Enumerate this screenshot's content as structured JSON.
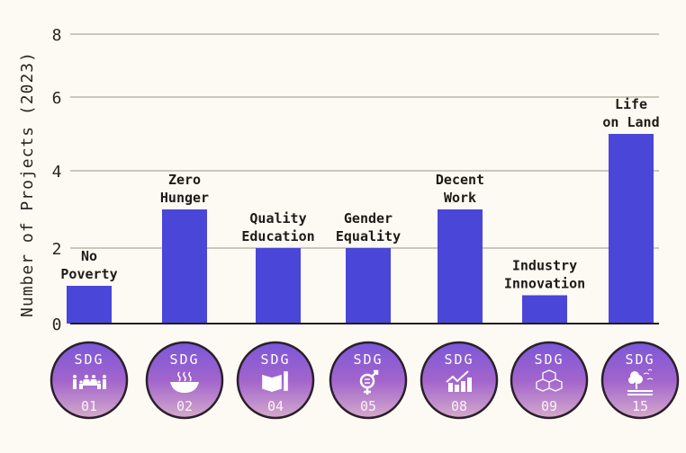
{
  "chart_data": {
    "type": "bar",
    "title": "",
    "xlabel": "",
    "ylabel": "Number of Projects (2023)",
    "ylim": [
      0,
      8
    ],
    "yticks": [
      0,
      2,
      4,
      6,
      8
    ],
    "grid": true,
    "bar_color": "#4a46d8",
    "categories": [
      "No\nPoverty",
      "Zero\nHunger",
      "Quality\nEducation",
      "Gender\nEquality",
      "Decent\nWork",
      "Industry\nInnovation",
      "Life\non Land"
    ],
    "values": [
      1,
      3,
      2,
      2,
      3,
      0.75,
      5
    ],
    "badges": [
      {
        "label": "SDG",
        "number": "01",
        "icon": "family-icon"
      },
      {
        "label": "SDG",
        "number": "02",
        "icon": "bowl-icon"
      },
      {
        "label": "SDG",
        "number": "04",
        "icon": "book-pencil-icon"
      },
      {
        "label": "SDG",
        "number": "05",
        "icon": "gender-equality-icon"
      },
      {
        "label": "SDG",
        "number": "08",
        "icon": "growth-chart-icon"
      },
      {
        "label": "SDG",
        "number": "09",
        "icon": "cubes-icon"
      },
      {
        "label": "SDG",
        "number": "15",
        "icon": "tree-birds-icon"
      }
    ],
    "badge_gradient": [
      "#7a58d8",
      "#a264cc",
      "#d4aacb"
    ]
  }
}
